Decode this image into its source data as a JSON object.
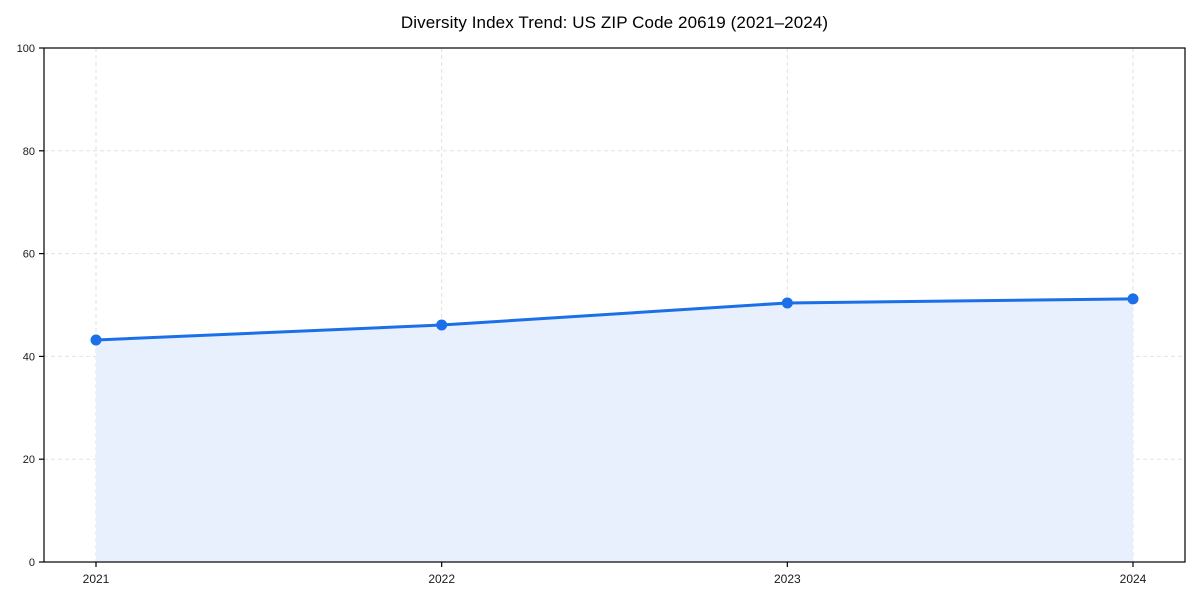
{
  "page": {
    "background": "#ffffff"
  },
  "chart_data": {
    "type": "line",
    "title": "Diversity Index Trend: US ZIP Code 20619 (2021–2024)",
    "categories": [
      "2021",
      "2022",
      "2023",
      "2024"
    ],
    "series": [
      {
        "name": "Diversity Index",
        "values": [
          43.2,
          46.1,
          50.4,
          51.2
        ]
      }
    ],
    "xlabel": "",
    "ylabel": "",
    "ylim": [
      0,
      100
    ],
    "yticks": [
      0,
      20,
      40,
      60,
      80,
      100
    ],
    "grid": "dashed-both-axes",
    "legend": "none",
    "area_fill": true,
    "colors": {
      "line": "#1b6fe8",
      "marker": "#1b6fe8",
      "area": "#e8f0fd",
      "grid": "#e2e2e2",
      "axis": "#000000",
      "tick_text": "#1a1a1a"
    }
  }
}
